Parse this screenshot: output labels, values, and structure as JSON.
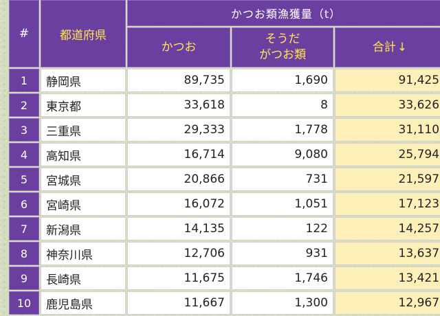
{
  "header": {
    "rank": "#",
    "prefecture": "都道府県",
    "group": "かつお類漁獲量（t）",
    "katsuo": "かつお",
    "souda_line1": "そうだ",
    "souda_line2": "がつお類",
    "total": "合計",
    "sort_icon": "↓"
  },
  "rows": [
    {
      "rank": "1",
      "pref": "静岡県",
      "katsuo": "89,735",
      "souda": "1,690",
      "total": "91,425"
    },
    {
      "rank": "2",
      "pref": "東京都",
      "katsuo": "33,618",
      "souda": "8",
      "total": "33,626"
    },
    {
      "rank": "3",
      "pref": "三重県",
      "katsuo": "29,333",
      "souda": "1,778",
      "total": "31,110"
    },
    {
      "rank": "4",
      "pref": "高知県",
      "katsuo": "16,714",
      "souda": "9,080",
      "total": "25,794"
    },
    {
      "rank": "5",
      "pref": "宮城県",
      "katsuo": "20,866",
      "souda": "731",
      "total": "21,597"
    },
    {
      "rank": "6",
      "pref": "宮崎県",
      "katsuo": "16,072",
      "souda": "1,051",
      "total": "17,123"
    },
    {
      "rank": "7",
      "pref": "新潟県",
      "katsuo": "14,135",
      "souda": "122",
      "total": "14,257"
    },
    {
      "rank": "8",
      "pref": "神奈川県",
      "katsuo": "12,706",
      "souda": "931",
      "total": "13,637"
    },
    {
      "rank": "9",
      "pref": "長崎県",
      "katsuo": "11,675",
      "souda": "1,746",
      "total": "13,421"
    },
    {
      "rank": "10",
      "pref": "鹿児島県",
      "katsuo": "11,667",
      "souda": "1,300",
      "total": "12,967"
    }
  ]
}
